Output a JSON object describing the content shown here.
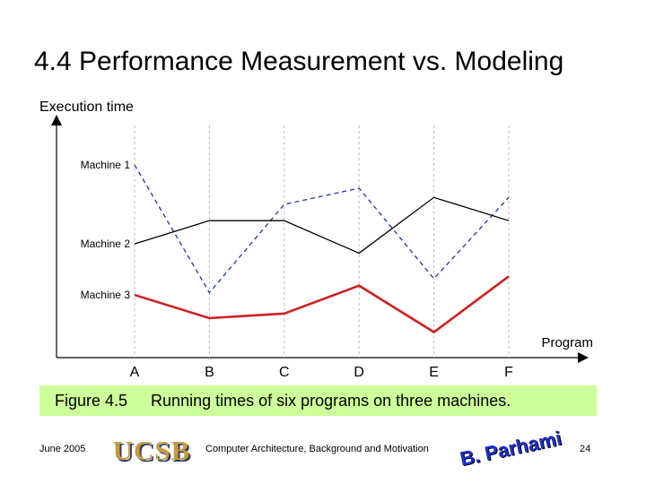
{
  "title": "4.4  Performance Measurement vs. Modeling",
  "chart_data": {
    "type": "line",
    "ylabel": "Execution time",
    "xlabel": "Program",
    "categories": [
      "A",
      "B",
      "C",
      "D",
      "E",
      "F"
    ],
    "y_scale": "relative (no numeric ticks)",
    "ylim": [
      0,
      100
    ],
    "grid": "vertical dashed lines at each program",
    "legend": "series labels at left of plot",
    "series": [
      {
        "name": "Machine 1",
        "values": [
          83,
          28,
          66,
          73,
          34,
          69
        ],
        "color": "#2233aa",
        "style": "dashed"
      },
      {
        "name": "Machine 2",
        "values": [
          49,
          59,
          59,
          45,
          69,
          59
        ],
        "color": "#000000",
        "style": "solid"
      },
      {
        "name": "Machine 3",
        "values": [
          27,
          17,
          19,
          31,
          11,
          35
        ],
        "color": "#cc2222",
        "style": "solid-thick"
      }
    ]
  },
  "caption": {
    "figure": "Figure 4.5",
    "text": "Running times of six programs on three machines.",
    "background": "#ccff99"
  },
  "footer": {
    "date": "June 2005",
    "logo": "UCSB",
    "course": "Computer Architecture, Background and Motivation",
    "author_signature": "B. Parhami",
    "page": "24"
  }
}
